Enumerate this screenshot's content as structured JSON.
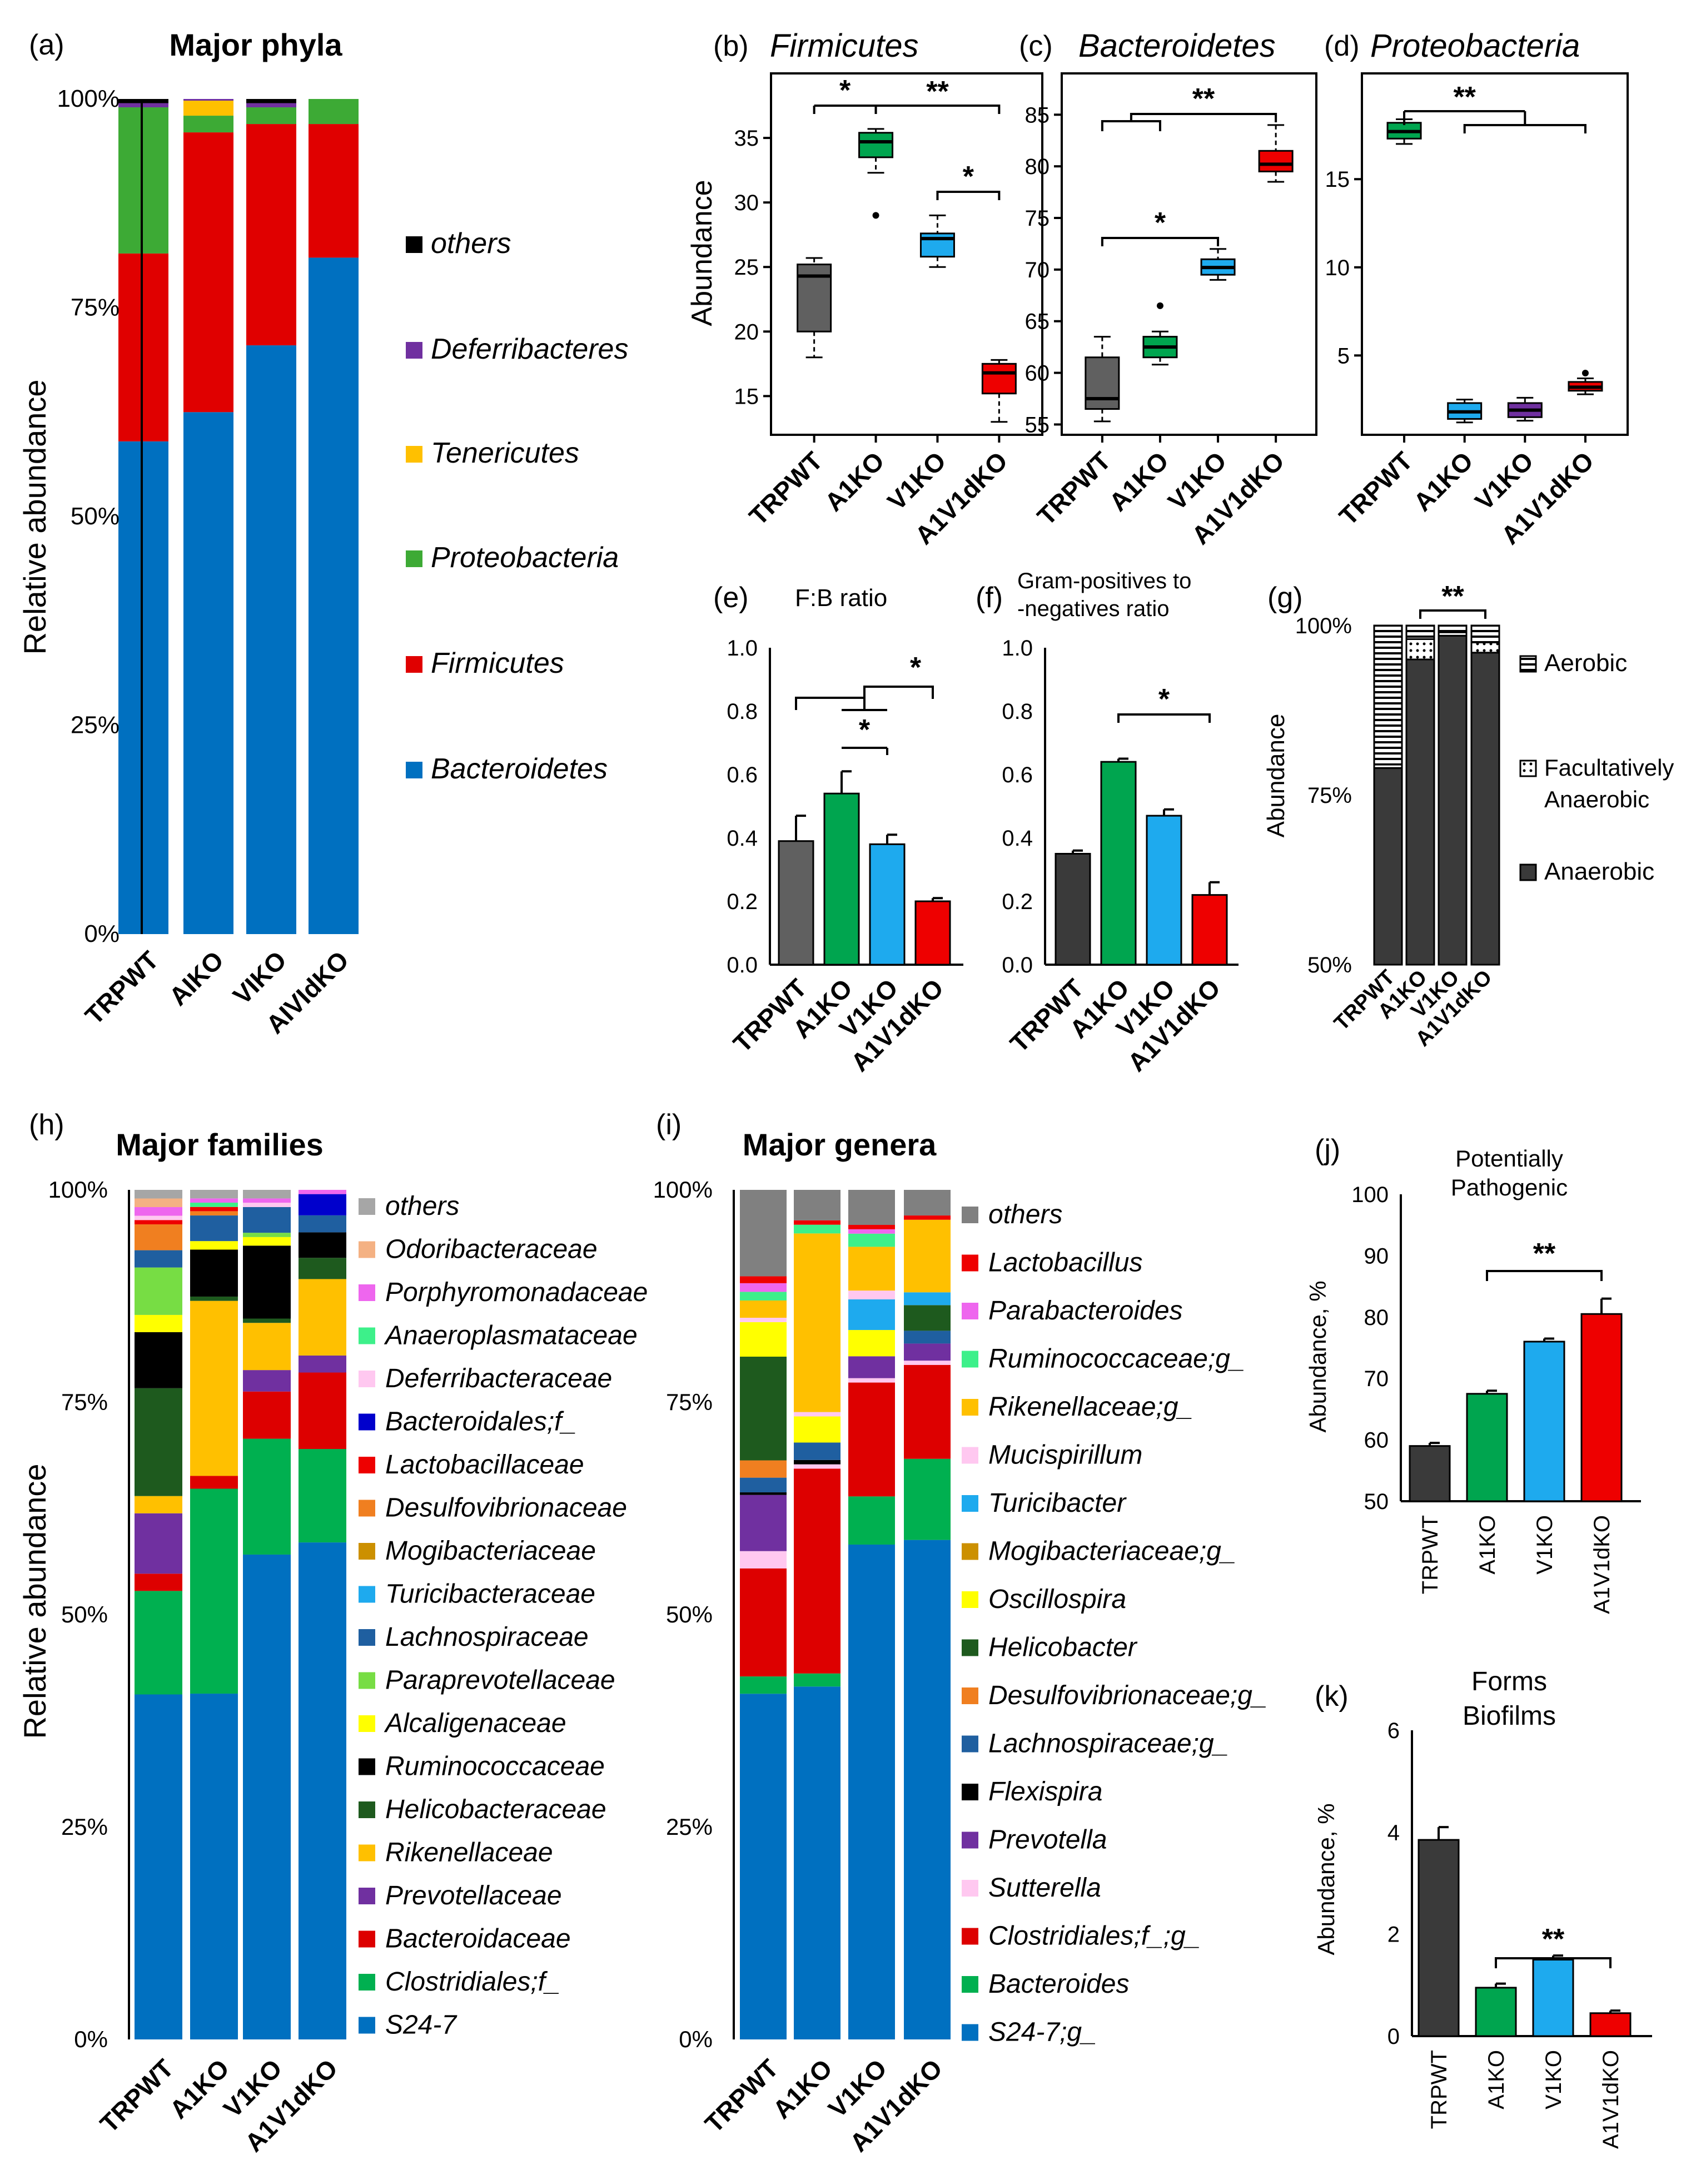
{
  "a": {
    "label": "(a)",
    "title": "Major phyla",
    "ylabel": "Relative abundance",
    "yticks": [
      "0%",
      "25%",
      "50%",
      "75%",
      "100%"
    ],
    "categories": [
      "TRPWT",
      "AIKO",
      "VIKO",
      "AIVIdKO"
    ],
    "legend": [
      "others",
      "Deferribacteres",
      "Tenericutes",
      "Proteobacteria",
      "Firmicutes",
      "Bacteroidetes"
    ],
    "colors": {
      "Bacteroidetes": "#0070C0",
      "Firmicutes": "#E00000",
      "Proteobacteria": "#3DAA35",
      "Tenericutes": "#FFC000",
      "Deferribacteres": "#7030A0",
      "others": "#000000"
    },
    "stack_order": [
      "Bacteroidetes",
      "Firmicutes",
      "Proteobacteria",
      "Tenericutes",
      "Deferribacteres",
      "others"
    ],
    "values": [
      [
        59,
        22.5,
        17.5,
        0,
        0.5,
        0.5
      ],
      [
        62.5,
        33.5,
        2,
        1.8,
        0.2,
        0
      ],
      [
        70.5,
        26.5,
        2,
        0,
        0.5,
        0.5
      ],
      [
        81,
        16,
        3,
        0,
        0,
        0
      ]
    ]
  },
  "b": {
    "label": "(b)",
    "title": "Firmicutes",
    "ylabel": "Abundance",
    "yticks": [
      "15",
      "20",
      "25",
      "30",
      "35"
    ],
    "ymin": 12,
    "ymax": 40,
    "categories": [
      "TRPWT",
      "A1KO",
      "V1KO",
      "A1V1dKO"
    ],
    "boxes": [
      {
        "min": 18,
        "q1": 20,
        "med": 24.3,
        "q3": 25.2,
        "max": 25.7,
        "out": [],
        "color": "#606060"
      },
      {
        "min": 32.3,
        "q1": 33.5,
        "med": 34.7,
        "q3": 35.4,
        "max": 35.7,
        "out": [
          29
        ],
        "color": "#00A54F"
      },
      {
        "min": 25,
        "q1": 25.8,
        "med": 27.2,
        "q3": 27.6,
        "max": 29,
        "out": [],
        "color": "#1EAAEE"
      },
      {
        "min": 13,
        "q1": 15.2,
        "med": 16.8,
        "q3": 17.5,
        "max": 17.8,
        "out": [],
        "color": "#EE0000"
      }
    ],
    "sig": [
      "*",
      "**",
      "*"
    ]
  },
  "c": {
    "label": "(c)",
    "title": "Bacteroidetes",
    "yticks": [
      "55",
      "60",
      "65",
      "70",
      "75",
      "80",
      "85"
    ],
    "ymin": 54,
    "ymax": 89,
    "categories": [
      "TRPWT",
      "A1KO",
      "V1KO",
      "A1V1dKO"
    ],
    "boxes": [
      {
        "min": 55.3,
        "q1": 56.5,
        "med": 57.5,
        "q3": 61.5,
        "max": 63.5,
        "out": [],
        "color": "#606060"
      },
      {
        "min": 60.8,
        "q1": 61.5,
        "med": 62.5,
        "q3": 63.5,
        "max": 64,
        "out": [
          66.5
        ],
        "color": "#00A54F"
      },
      {
        "min": 69,
        "q1": 69.5,
        "med": 70.2,
        "q3": 71,
        "max": 72,
        "out": [],
        "color": "#1EAAEE"
      },
      {
        "min": 78.5,
        "q1": 79.5,
        "med": 80.2,
        "q3": 81.5,
        "max": 84,
        "out": [],
        "color": "#EE0000"
      }
    ],
    "sig": [
      "**",
      "*"
    ]
  },
  "d": {
    "label": "(d)",
    "title": "Proteobacteria",
    "yticks": [
      "5",
      "10",
      "15"
    ],
    "ymin": 0.5,
    "ymax": 21,
    "categories": [
      "TRPWT",
      "A1KO",
      "V1KO",
      "A1V1dKO"
    ],
    "boxes": [
      {
        "min": 17,
        "q1": 17.3,
        "med": 17.7,
        "q3": 18.2,
        "max": 18.4,
        "out": [],
        "color": "#00A54F"
      },
      {
        "min": 1.2,
        "q1": 1.4,
        "med": 1.8,
        "q3": 2.3,
        "max": 2.5,
        "out": [],
        "color": "#1EAAEE"
      },
      {
        "min": 1.3,
        "q1": 1.5,
        "med": 1.9,
        "q3": 2.3,
        "max": 2.6,
        "out": [],
        "color": "#7030A0"
      },
      {
        "min": 2.8,
        "q1": 3,
        "med": 3.2,
        "q3": 3.5,
        "max": 3.7,
        "out": [
          4
        ],
        "color": "#EE0000"
      }
    ],
    "sig": [
      "**"
    ]
  },
  "e": {
    "label": "(e)",
    "title": "F:B ratio",
    "yticks": [
      "0.0",
      "0.2",
      "0.4",
      "0.6",
      "0.8",
      "1.0"
    ],
    "ymax": 1.0,
    "categories": [
      "TRPWT",
      "A1KO",
      "V1KO",
      "A1V1dKO"
    ],
    "values": [
      0.39,
      0.54,
      0.38,
      0.2
    ],
    "errors": [
      0.08,
      0.07,
      0.03,
      0.01
    ],
    "colors": [
      "#606060",
      "#00A54F",
      "#1EAAEE",
      "#EE0000"
    ],
    "sig": [
      "*",
      "*"
    ]
  },
  "f": {
    "label": "(f)",
    "title_line1": "Gram-positives to",
    "title_line2": "-negatives ratio",
    "yticks": [
      "0.0",
      "0.2",
      "0.4",
      "0.6",
      "0.8",
      "1.0"
    ],
    "ymax": 1.0,
    "categories": [
      "TRPWT",
      "A1KO",
      "V1KO",
      "A1V1dKO"
    ],
    "values": [
      0.35,
      0.64,
      0.47,
      0.22
    ],
    "errors": [
      0.01,
      0.01,
      0.02,
      0.04
    ],
    "colors": [
      "#3A3A3A",
      "#00A54F",
      "#1EAAEE",
      "#EE0000"
    ],
    "sig": [
      "*"
    ]
  },
  "g": {
    "label": "(g)",
    "ylabel": "Abundance",
    "yticks": [
      "50%",
      "75%",
      "100%"
    ],
    "categories": [
      "TRPWT",
      "A1KO",
      "V1KO",
      "A1V1dKO"
    ],
    "legend": [
      "Aerobic",
      "Facultatively",
      "Anaerobic",
      "Anaerobic"
    ],
    "values": [
      {
        "anaerobic": 79,
        "facultative": 0.5,
        "aerobic": 20.5
      },
      {
        "anaerobic": 95,
        "facultative": 3,
        "aerobic": 2
      },
      {
        "anaerobic": 98.5,
        "facultative": 0.5,
        "aerobic": 1
      },
      {
        "anaerobic": 96,
        "facultative": 1.5,
        "aerobic": 2.5
      }
    ],
    "sig": [
      "**"
    ]
  },
  "h": {
    "label": "(h)",
    "title": "Major families",
    "ylabel": "Relative abundance",
    "yticks": [
      "0%",
      "25%",
      "50%",
      "75%",
      "100%"
    ],
    "categories": [
      "TRPWT",
      "A1KO",
      "V1KO",
      "A1V1dKO"
    ],
    "legend": [
      "others",
      "Odoribacteraceae",
      "Porphyromonadaceae",
      "Anaeroplasmataceae",
      "Deferribacteraceae",
      "Bacteroidales;f_",
      "Lactobacillaceae",
      "Desulfovibrionaceae",
      "Mogibacteriaceae",
      "Turicibacteraceae",
      "Lachnospiraceae",
      "Paraprevotellaceae",
      "Alcaligenaceae",
      "Ruminococcaceae",
      "Helicobacteraceae",
      "Rikenellaceae",
      "Prevotellaceae",
      "Bacteroidaceae",
      "Clostridiales;f_",
      "S24-7"
    ],
    "colors": [
      "#A6A6A6",
      "#F4B183",
      "#EE66EE",
      "#3DF08A",
      "#FFC8F0",
      "#0000CC",
      "#EE0000",
      "#F07F20",
      "#CC9000",
      "#1EAAEE",
      "#1F5FA0",
      "#77DD44",
      "#FFFF00",
      "#000000",
      "#1E5A1E",
      "#FFC000",
      "#7030A0",
      "#DD0000",
      "#00B050",
      "#0070C0"
    ],
    "values": [
      [
        1,
        1,
        1,
        0,
        0.5,
        0,
        0.5,
        3,
        0,
        0,
        2,
        5.5,
        2,
        6.5,
        12.5,
        2,
        7,
        2,
        12,
        40
      ],
      [
        1,
        0,
        0.5,
        0.5,
        0,
        0,
        0.5,
        0.5,
        0,
        0,
        3,
        0,
        1,
        5.5,
        0.5,
        20.5,
        0,
        1.5,
        24,
        40.5
      ],
      [
        1,
        0,
        0.5,
        0,
        0.5,
        0,
        0,
        0,
        0,
        0,
        3,
        0.5,
        1,
        8.5,
        0.5,
        5.5,
        2.5,
        5.5,
        13.5,
        56.5
      ],
      [
        0,
        0,
        0.5,
        0,
        0,
        2.5,
        0,
        0,
        0,
        0,
        2,
        0,
        0,
        3,
        2.5,
        9,
        2,
        9,
        11,
        58.5
      ]
    ]
  },
  "i": {
    "label": "(i)",
    "title": "Major genera",
    "yticks": [
      "0%",
      "25%",
      "50%",
      "75%",
      "100%"
    ],
    "categories": [
      "TRPWT",
      "A1KO",
      "V1KO",
      "A1V1dKO"
    ],
    "legend": [
      "others",
      "Lactobacillus",
      "Parabacteroides",
      "Ruminococcaceae;g_",
      "Rikenellaceae;g_",
      "Mucispirillum",
      "Turicibacter",
      "Mogibacteriaceae;g_",
      "Oscillospira",
      "Helicobacter",
      "Desulfovibrionaceae;g_",
      "Lachnospiraceae;g_",
      "Flexispira",
      "Prevotella",
      "Sutterella",
      "Clostridiales;f_;g_",
      "Bacteroides",
      "S24-7;g_"
    ],
    "colors": [
      "#808080",
      "#EE0000",
      "#EE66EE",
      "#3DF08A",
      "#FFC000",
      "#FFC8F0",
      "#1EAAEE",
      "#CC9000",
      "#FFFF00",
      "#1E5A1E",
      "#F07F20",
      "#1F5FA0",
      "#000000",
      "#7030A0",
      "#FFC8F0",
      "#DD0000",
      "#00B050",
      "#0070C0"
    ],
    "values": [
      [
        10,
        0.8,
        1,
        1,
        2,
        0.5,
        0,
        0,
        4,
        12,
        2,
        1.7,
        0.3,
        6.5,
        2,
        12.5,
        2,
        40
      ],
      [
        3.5,
        0.5,
        0,
        1,
        20.5,
        0.5,
        0,
        0,
        3,
        0,
        0,
        2,
        0.5,
        0,
        0.5,
        23.5,
        1.5,
        40.5
      ],
      [
        4,
        0.5,
        0.5,
        1.5,
        5,
        1,
        3.5,
        0,
        3,
        0,
        0,
        0,
        0,
        2.5,
        0.5,
        13,
        5.5,
        56.5
      ],
      [
        3,
        0.5,
        0,
        0,
        8.5,
        0,
        1.5,
        0,
        0,
        3,
        0,
        1.5,
        0,
        2,
        0.5,
        11,
        9.5,
        58.5
      ]
    ]
  },
  "j": {
    "label": "(j)",
    "title_line1": "Potentially",
    "title_line2": "Pathogenic",
    "ylabel": "Abundance, %",
    "yticks": [
      "50",
      "60",
      "70",
      "80",
      "90",
      "100"
    ],
    "ymin": 50,
    "ymax": 100,
    "categories": [
      "TRPWT",
      "A1KO",
      "V1KO",
      "A1V1dKO"
    ],
    "values": [
      59,
      67.5,
      76,
      80.5
    ],
    "errors": [
      0.5,
      0.5,
      0.5,
      2.5
    ],
    "colors": [
      "#3A3A3A",
      "#00A54F",
      "#1EAAEE",
      "#EE0000"
    ],
    "sig": [
      "**"
    ]
  },
  "k": {
    "label": "(k)",
    "title_line1": "Forms",
    "title_line2": "Biofilms",
    "ylabel": "Abundance, %",
    "yticks": [
      "0",
      "2",
      "4",
      "6"
    ],
    "ymin": 0,
    "ymax": 6,
    "categories": [
      "TRPWT",
      "A1KO",
      "V1KO",
      "A1V1dKO"
    ],
    "values": [
      3.85,
      0.95,
      1.5,
      0.45
    ],
    "errors": [
      0.25,
      0.08,
      0.08,
      0.05
    ],
    "colors": [
      "#3A3A3A",
      "#00A54F",
      "#1EAAEE",
      "#EE0000"
    ],
    "sig": [
      "**"
    ]
  }
}
